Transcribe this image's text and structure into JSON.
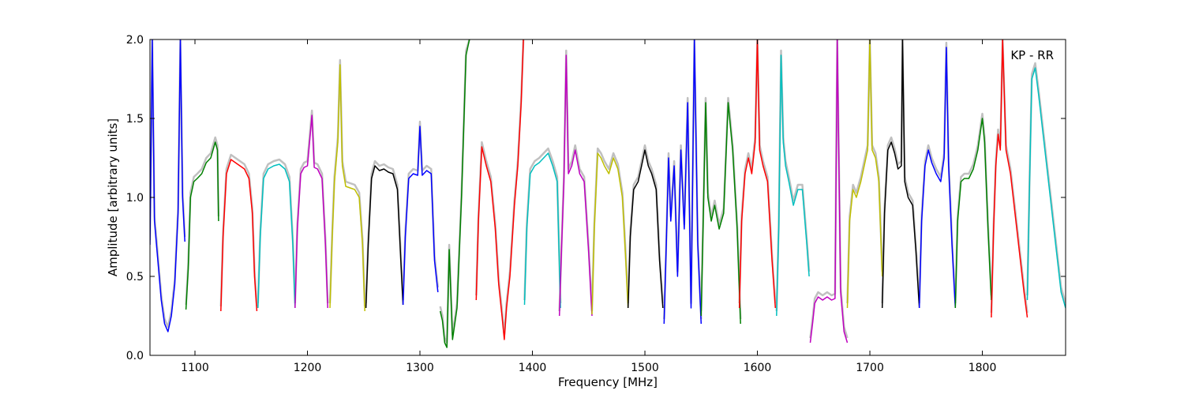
{
  "chart_data": {
    "type": "line",
    "title": "",
    "xlabel": "Frequency [MHz]",
    "ylabel": "Amplitude [arbitrary units]",
    "annotation": "KP - RR",
    "xlim": [
      1060,
      1874
    ],
    "ylim": [
      0.0,
      2.0
    ],
    "xticks": [
      1100,
      1200,
      1300,
      1400,
      1500,
      1600,
      1700,
      1800
    ],
    "xtick_labels": [
      "1100",
      "1200",
      "1300",
      "1400",
      "1500",
      "1600",
      "1700",
      "1800"
    ],
    "yticks": [
      0.0,
      0.5,
      1.0,
      1.5,
      2.0
    ],
    "ytick_labels": [
      "0.0",
      "0.5",
      "1.0",
      "1.5",
      "2.0"
    ],
    "grid": false,
    "legend": "none",
    "background_color": "#c0c0c0",
    "colors": {
      "blue": "#0000ff",
      "green": "#008000",
      "red": "#ff0000",
      "cyan": "#00bfbf",
      "magenta": "#bf00bf",
      "yellow": "#bfbf00",
      "black": "#000000"
    },
    "series": [
      {
        "color": "blue",
        "x": [
          1060,
          1062,
          1064,
          1067,
          1070,
          1073,
          1076,
          1079,
          1082,
          1085,
          1087,
          1089,
          1091
        ],
        "y": [
          0.7,
          2.0,
          0.85,
          0.6,
          0.35,
          0.2,
          0.15,
          0.25,
          0.45,
          0.9,
          2.0,
          1.0,
          0.72
        ]
      },
      {
        "color": "green",
        "x": [
          1092,
          1094,
          1096,
          1099,
          1102,
          1106,
          1110,
          1114,
          1118,
          1120,
          1121
        ],
        "y": [
          0.29,
          0.55,
          1.0,
          1.1,
          1.12,
          1.15,
          1.22,
          1.25,
          1.35,
          1.3,
          0.85
        ]
      },
      {
        "color": "red",
        "x": [
          1123,
          1125,
          1128,
          1132,
          1136,
          1140,
          1144,
          1148,
          1151,
          1153,
          1155
        ],
        "y": [
          0.28,
          0.75,
          1.15,
          1.24,
          1.22,
          1.2,
          1.18,
          1.12,
          0.9,
          0.5,
          0.28
        ]
      },
      {
        "color": "cyan",
        "x": [
          1156,
          1158,
          1161,
          1165,
          1170,
          1175,
          1180,
          1184,
          1187,
          1189
        ],
        "y": [
          0.3,
          0.75,
          1.12,
          1.18,
          1.2,
          1.21,
          1.18,
          1.1,
          0.7,
          0.3
        ]
      },
      {
        "color": "magenta",
        "x": [
          1189,
          1191,
          1194,
          1197,
          1200,
          1204,
          1206,
          1209,
          1213,
          1216,
          1218
        ],
        "y": [
          0.3,
          0.8,
          1.15,
          1.19,
          1.2,
          1.52,
          1.19,
          1.18,
          1.12,
          0.7,
          0.3
        ]
      },
      {
        "color": "yellow",
        "x": [
          1220,
          1222,
          1224,
          1227,
          1229,
          1231,
          1234,
          1238,
          1242,
          1246,
          1249,
          1251
        ],
        "y": [
          0.3,
          0.75,
          1.1,
          1.35,
          1.84,
          1.2,
          1.07,
          1.06,
          1.05,
          1.0,
          0.7,
          0.28
        ]
      },
      {
        "color": "black",
        "x": [
          1252,
          1254,
          1257,
          1260,
          1264,
          1268,
          1272,
          1276,
          1280,
          1283,
          1285
        ],
        "y": [
          0.3,
          0.7,
          1.12,
          1.2,
          1.17,
          1.18,
          1.16,
          1.15,
          1.05,
          0.6,
          0.32
        ]
      },
      {
        "color": "blue",
        "x": [
          1285,
          1287,
          1290,
          1294,
          1298,
          1300,
          1302,
          1306,
          1310,
          1313,
          1316
        ],
        "y": [
          0.32,
          0.75,
          1.12,
          1.15,
          1.14,
          1.45,
          1.14,
          1.17,
          1.15,
          0.6,
          0.4
        ]
      },
      {
        "color": "green",
        "x": [
          1318,
          1320,
          1322,
          1324,
          1326,
          1329,
          1333,
          1337,
          1341,
          1344
        ],
        "y": [
          0.28,
          0.22,
          0.08,
          0.05,
          0.67,
          0.1,
          0.3,
          1.0,
          1.9,
          2.0
        ]
      },
      {
        "color": "red",
        "x": [
          1350,
          1352,
          1355,
          1359,
          1363,
          1367,
          1370,
          1373,
          1375,
          1377,
          1380,
          1384,
          1387,
          1390,
          1392
        ],
        "y": [
          0.35,
          0.85,
          1.32,
          1.2,
          1.1,
          0.8,
          0.45,
          0.25,
          0.1,
          0.3,
          0.5,
          0.95,
          1.2,
          1.6,
          2.0
        ]
      },
      {
        "color": "cyan",
        "x": [
          1393,
          1395,
          1398,
          1402,
          1406,
          1410,
          1414,
          1418,
          1422,
          1425
        ],
        "y": [
          0.32,
          0.8,
          1.15,
          1.2,
          1.22,
          1.25,
          1.28,
          1.2,
          1.1,
          0.3
        ]
      },
      {
        "color": "magenta",
        "x": [
          1424,
          1426,
          1428,
          1430,
          1432,
          1435,
          1438,
          1442,
          1446,
          1450,
          1453
        ],
        "y": [
          0.25,
          0.7,
          1.1,
          1.9,
          1.15,
          1.2,
          1.3,
          1.15,
          1.1,
          0.65,
          0.25
        ]
      },
      {
        "color": "yellow",
        "x": [
          1453,
          1455,
          1458,
          1461,
          1464,
          1468,
          1472,
          1476,
          1480,
          1483,
          1485
        ],
        "y": [
          0.26,
          0.8,
          1.28,
          1.25,
          1.2,
          1.15,
          1.25,
          1.18,
          1.0,
          0.6,
          0.3
        ]
      },
      {
        "color": "black",
        "x": [
          1485,
          1487,
          1490,
          1494,
          1497,
          1500,
          1503,
          1506,
          1510,
          1513,
          1516
        ],
        "y": [
          0.3,
          0.75,
          1.05,
          1.1,
          1.2,
          1.3,
          1.2,
          1.15,
          1.05,
          0.6,
          0.3
        ]
      },
      {
        "color": "blue",
        "x": [
          1517,
          1519,
          1521,
          1523,
          1526,
          1529,
          1532,
          1535,
          1538,
          1541,
          1544,
          1547,
          1550
        ],
        "y": [
          0.2,
          0.7,
          1.25,
          0.85,
          1.2,
          0.5,
          1.3,
          0.8,
          1.6,
          0.3,
          2.0,
          0.7,
          0.2
        ]
      },
      {
        "color": "green",
        "x": [
          1550,
          1552,
          1554,
          1556,
          1559,
          1562,
          1566,
          1570,
          1574,
          1578,
          1582,
          1585
        ],
        "y": [
          0.25,
          0.9,
          1.6,
          1.0,
          0.85,
          0.95,
          0.8,
          0.9,
          1.6,
          1.3,
          0.8,
          0.2
        ]
      },
      {
        "color": "red",
        "x": [
          1584,
          1586,
          1589,
          1592,
          1595,
          1598,
          1600,
          1602,
          1605,
          1609,
          1613,
          1616
        ],
        "y": [
          0.3,
          0.85,
          1.15,
          1.25,
          1.15,
          1.35,
          2.0,
          1.3,
          1.2,
          1.1,
          0.6,
          0.3
        ]
      },
      {
        "color": "cyan",
        "x": [
          1617,
          1619,
          1621,
          1623,
          1625,
          1628,
          1632,
          1636,
          1640,
          1644,
          1646
        ],
        "y": [
          0.25,
          0.8,
          1.9,
          1.35,
          1.2,
          1.1,
          0.95,
          1.05,
          1.05,
          0.7,
          0.5
        ]
      },
      {
        "color": "magenta",
        "x": [
          1647,
          1649,
          1651,
          1654,
          1658,
          1662,
          1666,
          1669,
          1671,
          1674,
          1677,
          1680
        ],
        "y": [
          0.08,
          0.2,
          0.33,
          0.37,
          0.35,
          0.37,
          0.35,
          0.36,
          2.0,
          0.4,
          0.15,
          0.08
        ]
      },
      {
        "color": "yellow",
        "x": [
          1680,
          1682,
          1685,
          1688,
          1692,
          1695,
          1698,
          1700,
          1702,
          1705,
          1708,
          1711
        ],
        "y": [
          0.3,
          0.85,
          1.05,
          1.0,
          1.1,
          1.2,
          1.3,
          2.0,
          1.3,
          1.25,
          1.1,
          0.5
        ]
      },
      {
        "color": "black",
        "x": [
          1711,
          1713,
          1716,
          1719,
          1722,
          1725,
          1728,
          1729,
          1731,
          1734,
          1738,
          1741,
          1744
        ],
        "y": [
          0.3,
          0.9,
          1.3,
          1.35,
          1.28,
          1.18,
          1.2,
          2.0,
          1.1,
          1.0,
          0.95,
          0.65,
          0.3
        ]
      },
      {
        "color": "blue",
        "x": [
          1744,
          1746,
          1749,
          1752,
          1755,
          1759,
          1763,
          1766,
          1768,
          1770,
          1773,
          1776
        ],
        "y": [
          0.3,
          0.85,
          1.2,
          1.3,
          1.22,
          1.15,
          1.1,
          1.25,
          1.95,
          1.2,
          0.7,
          0.3
        ]
      },
      {
        "color": "green",
        "x": [
          1776,
          1778,
          1781,
          1784,
          1788,
          1792,
          1796,
          1800,
          1802,
          1805,
          1808
        ],
        "y": [
          0.3,
          0.85,
          1.1,
          1.12,
          1.12,
          1.18,
          1.3,
          1.5,
          1.35,
          0.8,
          0.35
        ]
      },
      {
        "color": "red",
        "x": [
          1808,
          1810,
          1812,
          1814,
          1816,
          1818,
          1821,
          1825,
          1829,
          1833,
          1837,
          1840
        ],
        "y": [
          0.24,
          0.8,
          1.2,
          1.4,
          1.3,
          2.0,
          1.3,
          1.15,
          0.9,
          0.65,
          0.4,
          0.24
        ]
      },
      {
        "color": "cyan",
        "x": [
          1840,
          1842,
          1844,
          1847,
          1850,
          1854,
          1858,
          1862,
          1866,
          1870,
          1874
        ],
        "y": [
          0.35,
          1.1,
          1.75,
          1.82,
          1.65,
          1.4,
          1.15,
          0.9,
          0.65,
          0.4,
          0.3
        ]
      }
    ]
  }
}
